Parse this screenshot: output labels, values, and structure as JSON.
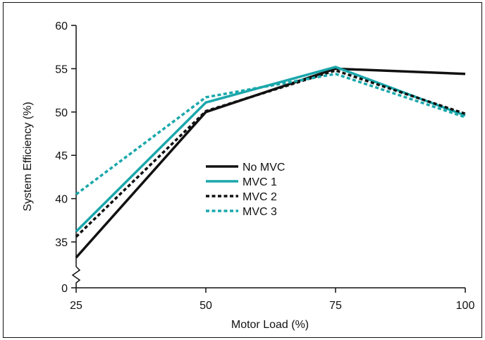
{
  "chart_data": {
    "type": "line",
    "title": "",
    "xlabel": "Motor Load (%)",
    "ylabel": "System Efficiency (%)",
    "x": [
      25,
      50,
      75,
      100
    ],
    "x_ticks": [
      "25",
      "50",
      "75",
      "100"
    ],
    "y_ticks": [
      "0",
      "35",
      "40",
      "45",
      "50",
      "55",
      "60"
    ],
    "ylim": [
      30,
      60
    ],
    "y_axis_break": "between 0 and 35",
    "grid": false,
    "legend_placement": "center",
    "series": [
      {
        "name": "No MVC",
        "values": [
          33.2,
          50.0,
          55.0,
          54.4
        ],
        "color": "#111111",
        "dash": "solid"
      },
      {
        "name": "MVC 1",
        "values": [
          36.2,
          51.1,
          55.2,
          49.6
        ],
        "color": "#1aa7ab",
        "dash": "solid"
      },
      {
        "name": "MVC 2",
        "values": [
          35.6,
          50.1,
          54.8,
          49.8
        ],
        "color": "#111111",
        "dash": "dotted"
      },
      {
        "name": "MVC 3",
        "values": [
          40.5,
          51.7,
          54.4,
          49.4
        ],
        "color": "#1aa7ab",
        "dash": "dotted"
      }
    ]
  }
}
